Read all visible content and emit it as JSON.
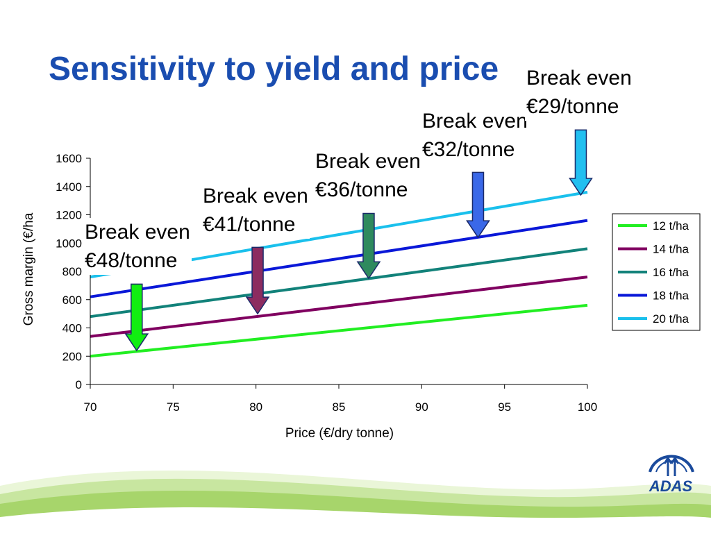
{
  "slide": {
    "title": "Sensitivity to yield and price",
    "logo_text": "ADAS"
  },
  "colors": {
    "title": "#1a4db0",
    "logo": "#1a4a9c",
    "swoosh": "#8cc63f"
  },
  "chart_data": {
    "type": "line",
    "x": [
      70,
      100
    ],
    "xlim": [
      70,
      100
    ],
    "ylim": [
      0,
      1600
    ],
    "xticks": [
      70,
      75,
      80,
      85,
      90,
      95,
      100
    ],
    "yticks": [
      0,
      200,
      400,
      600,
      800,
      1000,
      1200,
      1400,
      1600
    ],
    "xlabel": "Price (€/dry tonne)",
    "ylabel": "Gross margin (€/ha",
    "grid": false,
    "legend_position": "right",
    "series": [
      {
        "name": "12 t/ha",
        "color": "#22ee22",
        "values": [
          200,
          560
        ]
      },
      {
        "name": "14 t/ha",
        "color": "#800060",
        "values": [
          340,
          760
        ]
      },
      {
        "name": "16 t/ha",
        "color": "#12827a",
        "values": [
          480,
          960
        ]
      },
      {
        "name": "18 t/ha",
        "color": "#0a18d8",
        "values": [
          620,
          1160
        ]
      },
      {
        "name": "20 t/ha",
        "color": "#1ac0ec",
        "values": [
          760,
          1360
        ]
      }
    ],
    "annotations": [
      {
        "line1": "Break even",
        "line2": "€48/tonne",
        "arrow_x": 72.8,
        "arrow_from": 710,
        "arrow_to": 240,
        "color": "#11ee11"
      },
      {
        "line1": "Break even",
        "line2": "€41/tonne",
        "arrow_x": 80.1,
        "arrow_from": 970,
        "arrow_to": 500,
        "color": "#8c2c60"
      },
      {
        "line1": "Break even",
        "line2": "€36/tonne",
        "arrow_x": 86.8,
        "arrow_from": 1210,
        "arrow_to": 750,
        "color": "#2e8a5e"
      },
      {
        "line1": "Break even",
        "line2": "€32/tonne",
        "arrow_x": 93.4,
        "arrow_from": 1500,
        "arrow_to": 1040,
        "color": "#3a68e8"
      },
      {
        "line1": "Break even",
        "line2": "€29/tonne",
        "arrow_x": 99.6,
        "arrow_from": 1800,
        "arrow_to": 1340,
        "color": "#22bff0"
      }
    ]
  }
}
